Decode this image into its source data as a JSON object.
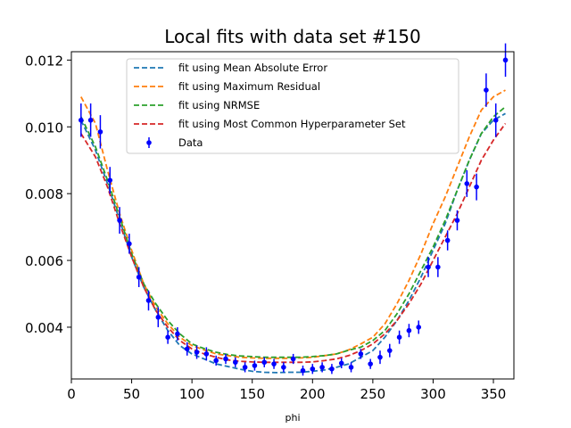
{
  "chart_data": {
    "type": "line",
    "title": "Local fits with data set #150",
    "xlabel": "phi",
    "ylabel": "",
    "xlim": [
      0,
      367
    ],
    "ylim": [
      0.00245,
      0.01225
    ],
    "xticks": [
      0,
      50,
      100,
      150,
      200,
      250,
      300,
      350
    ],
    "yticks": [
      0.004,
      0.006,
      0.008,
      0.01,
      0.012
    ],
    "xtick_labels": [
      "0",
      "50",
      "100",
      "150",
      "200",
      "250",
      "300",
      "350"
    ],
    "ytick_labels": [
      "0.004",
      "0.006",
      "0.008",
      "0.010",
      "0.012"
    ],
    "grid": false,
    "legend_position": "upper center",
    "series": [
      {
        "name": "fit using Mean Absolute Error",
        "color": "#1f77b4",
        "style": "dashed",
        "x": [
          8,
          20,
          30,
          40,
          50,
          60,
          70,
          80,
          90,
          100,
          110,
          120,
          130,
          140,
          150,
          160,
          170,
          180,
          190,
          200,
          210,
          220,
          230,
          240,
          250,
          260,
          270,
          280,
          290,
          300,
          310,
          320,
          330,
          340,
          350,
          360
        ],
        "y": [
          0.0102,
          0.0093,
          0.0083,
          0.0072,
          0.0061,
          0.0052,
          0.0045,
          0.0039,
          0.00345,
          0.0032,
          0.00305,
          0.0029,
          0.00282,
          0.00274,
          0.00268,
          0.00265,
          0.00264,
          0.00265,
          0.00265,
          0.00268,
          0.00272,
          0.0028,
          0.0029,
          0.0031,
          0.0033,
          0.0037,
          0.0042,
          0.0048,
          0.0055,
          0.0063,
          0.0071,
          0.0081,
          0.009,
          0.0098,
          0.0102,
          0.0104
        ]
      },
      {
        "name": "fit using Maximum Residual",
        "color": "#ff7f0e",
        "style": "dashed",
        "x": [
          8,
          20,
          30,
          40,
          50,
          60,
          70,
          80,
          90,
          100,
          110,
          120,
          130,
          140,
          150,
          160,
          170,
          180,
          190,
          200,
          210,
          220,
          230,
          240,
          250,
          260,
          270,
          280,
          290,
          300,
          310,
          320,
          330,
          340,
          350,
          360
        ],
        "y": [
          0.0109,
          0.0101,
          0.0087,
          0.0074,
          0.0063,
          0.0053,
          0.0046,
          0.0041,
          0.0037,
          0.00345,
          0.00332,
          0.0032,
          0.00315,
          0.0031,
          0.00308,
          0.00307,
          0.00307,
          0.00307,
          0.00308,
          0.0031,
          0.00315,
          0.0032,
          0.00332,
          0.0035,
          0.0037,
          0.0041,
          0.0047,
          0.0054,
          0.0062,
          0.0071,
          0.0079,
          0.0088,
          0.0097,
          0.0105,
          0.0109,
          0.0111
        ]
      },
      {
        "name": "fit using NRMSE",
        "color": "#2ca02c",
        "style": "dashed",
        "x": [
          8,
          20,
          30,
          40,
          50,
          60,
          70,
          80,
          90,
          100,
          110,
          120,
          130,
          140,
          150,
          160,
          170,
          180,
          190,
          200,
          210,
          220,
          230,
          240,
          250,
          260,
          270,
          280,
          290,
          300,
          310,
          320,
          330,
          340,
          350,
          360
        ],
        "y": [
          0.0103,
          0.0094,
          0.0084,
          0.0073,
          0.0062,
          0.0053,
          0.0047,
          0.0042,
          0.0038,
          0.0035,
          0.00336,
          0.00325,
          0.00318,
          0.00314,
          0.00312,
          0.0031,
          0.0031,
          0.0031,
          0.0031,
          0.00312,
          0.00315,
          0.0032,
          0.00331,
          0.0034,
          0.0036,
          0.0039,
          0.0044,
          0.005,
          0.0057,
          0.0064,
          0.0072,
          0.0081,
          0.009,
          0.0098,
          0.0103,
          0.0106
        ]
      },
      {
        "name": "fit using Most Common Hyperparameter Set",
        "color": "#d62728",
        "style": "dashed",
        "x": [
          8,
          20,
          30,
          40,
          50,
          60,
          70,
          80,
          90,
          100,
          110,
          120,
          130,
          140,
          150,
          160,
          170,
          180,
          190,
          200,
          210,
          220,
          230,
          240,
          250,
          260,
          270,
          280,
          290,
          300,
          310,
          320,
          330,
          340,
          350,
          360
        ],
        "y": [
          0.0098,
          0.0091,
          0.0082,
          0.0071,
          0.0061,
          0.0052,
          0.0045,
          0.004,
          0.0036,
          0.00335,
          0.0032,
          0.0031,
          0.00302,
          0.00298,
          0.00296,
          0.00295,
          0.00295,
          0.00295,
          0.00295,
          0.00296,
          0.003,
          0.00305,
          0.00315,
          0.0033,
          0.0035,
          0.0038,
          0.0042,
          0.0047,
          0.0053,
          0.006,
          0.0067,
          0.0074,
          0.0082,
          0.009,
          0.0096,
          0.0101
        ]
      }
    ],
    "data_points": {
      "name": "Data",
      "color": "#0000ff",
      "x": [
        8,
        16,
        24,
        32,
        40,
        48,
        56,
        64,
        72,
        80,
        88,
        96,
        104,
        112,
        120,
        128,
        136,
        144,
        152,
        160,
        168,
        176,
        184,
        192,
        200,
        208,
        216,
        224,
        232,
        240,
        248,
        256,
        264,
        272,
        280,
        288,
        296,
        304,
        312,
        320,
        328,
        336,
        344,
        352,
        360
      ],
      "y": [
        0.0102,
        0.0102,
        0.00985,
        0.0084,
        0.0072,
        0.0065,
        0.0055,
        0.0048,
        0.0043,
        0.0037,
        0.0038,
        0.00335,
        0.00325,
        0.0032,
        0.003,
        0.00305,
        0.00295,
        0.0028,
        0.00285,
        0.00295,
        0.0029,
        0.0028,
        0.00305,
        0.0027,
        0.00275,
        0.0028,
        0.00275,
        0.00292,
        0.0028,
        0.0032,
        0.0029,
        0.0031,
        0.0033,
        0.0037,
        0.0039,
        0.004,
        0.0058,
        0.0058,
        0.0066,
        0.0072,
        0.0083,
        0.0082,
        0.0111,
        0.0102,
        0.012
      ],
      "err": [
        0.0005,
        0.0005,
        0.0005,
        0.0004,
        0.0004,
        0.0003,
        0.0003,
        0.0003,
        0.0003,
        0.0002,
        0.0002,
        0.0002,
        0.0002,
        0.0002,
        0.00015,
        0.00015,
        0.00015,
        0.00015,
        0.00015,
        0.00015,
        0.00015,
        0.00015,
        0.00015,
        0.00015,
        0.00015,
        0.00015,
        0.00015,
        0.00015,
        0.00015,
        0.00015,
        0.00015,
        0.0002,
        0.0002,
        0.0002,
        0.0002,
        0.0002,
        0.0003,
        0.0003,
        0.0003,
        0.0003,
        0.0004,
        0.0004,
        0.0005,
        0.0005,
        0.0005
      ]
    }
  }
}
